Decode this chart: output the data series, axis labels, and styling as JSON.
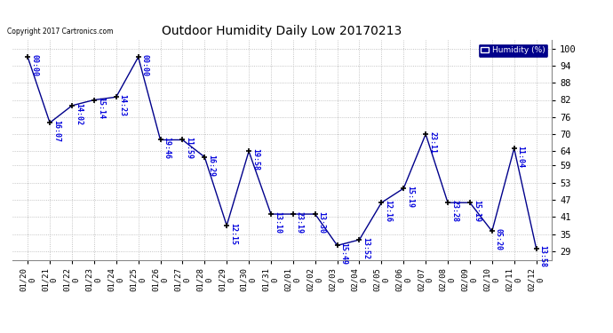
{
  "title": "Outdoor Humidity Daily Low 20170213",
  "copyright": "Copyright 2017 Cartronics.com",
  "legend_label": "Humidity (%)",
  "line_color": "#00008B",
  "marker_color": "#000000",
  "background_color": "#ffffff",
  "grid_color": "#aaaaaa",
  "label_color": "#0000DD",
  "dates": [
    "01/20\n0",
    "01/21\n0",
    "01/22\n0",
    "01/23\n0",
    "01/24\n0",
    "01/25\n0",
    "01/26\n0",
    "01/27\n0",
    "01/28\n0",
    "01/29\n0",
    "01/30\n0",
    "01/31\n0",
    "02/01\n0",
    "02/02\n0",
    "02/03\n0",
    "02/04\n0",
    "02/05\n0",
    "02/06\n0",
    "02/07\n0",
    "02/08\n0",
    "02/09\n0",
    "02/10\n0",
    "02/11\n0",
    "02/12\n0"
  ],
  "values": [
    97,
    74,
    80,
    82,
    83,
    97,
    68,
    68,
    62,
    38,
    64,
    42,
    42,
    42,
    31,
    33,
    46,
    51,
    70,
    46,
    46,
    36,
    65,
    30
  ],
  "times": [
    "00:00",
    "16:07",
    "14:02",
    "15:14",
    "14:23",
    "00:00",
    "19:46",
    "11:59",
    "16:29",
    "12:15",
    "19:58",
    "13:10",
    "23:19",
    "13:30",
    "15:49",
    "13:52",
    "12:16",
    "15:19",
    "23:11",
    "23:28",
    "15:19",
    "05:20",
    "11:04",
    "13:58"
  ],
  "ylim": [
    26,
    103
  ],
  "yticks": [
    29,
    35,
    41,
    47,
    53,
    59,
    64,
    70,
    76,
    82,
    88,
    94,
    100
  ],
  "figwidth": 6.9,
  "figheight": 3.75,
  "dpi": 100
}
